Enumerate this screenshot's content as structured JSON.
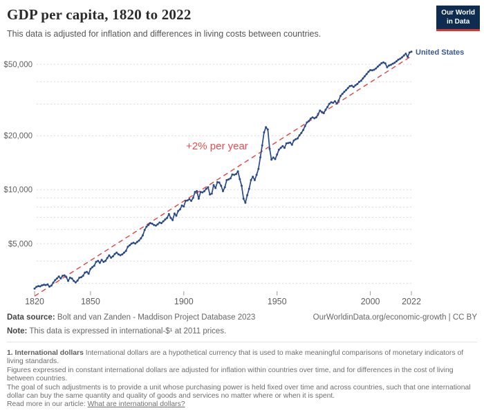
{
  "header": {
    "title": "GDP per capita, 1820 to 2022",
    "subtitle": "This data is adjusted for inflation and differences in living costs between countries.",
    "logo_line1": "Our World",
    "logo_line2": "in Data",
    "logo_bg_color": "#0d2c4f",
    "logo_accent_color": "#d8352c"
  },
  "chart_data": {
    "type": "line",
    "title": "GDP per capita, 1820 to 2022",
    "y_scale": "log",
    "grid": true,
    "colors": {
      "grid": "#dadada",
      "axis_text": "#5f5f5f",
      "tick": "#9a9a9a"
    },
    "x_axis": {
      "min": 1820,
      "max": 2022,
      "tick_values": [
        1820,
        1850,
        1900,
        1950,
        2000,
        2022
      ],
      "tick_labels": [
        "1820",
        "1850",
        "1900",
        "1950",
        "2000",
        "2022"
      ]
    },
    "y_axis": {
      "unit": "international-$ at 2011 prices",
      "range": [
        2700,
        60000
      ],
      "tick_values": [
        5000,
        10000,
        20000,
        50000
      ],
      "tick_labels": [
        "$5,000",
        "$10,000",
        "$20,000",
        "$50,000"
      ],
      "gridline_values": [
        3000,
        4000,
        5000,
        6000,
        7000,
        8000,
        9000,
        10000,
        20000,
        30000,
        40000,
        50000
      ]
    },
    "trendline": {
      "label": "+2% per year",
      "line_color": "#e8403e",
      "label_color": "#ee4a4c",
      "style": "dashed",
      "start": {
        "year": 1820,
        "value": 2550
      },
      "end": {
        "year": 2022,
        "value": 55500
      }
    },
    "series": [
      {
        "name": "United States",
        "color": "#28498b",
        "label_color": "#35599b",
        "year_start": 1820,
        "year_step": 1,
        "values": [
          2810,
          2870,
          2900,
          2890,
          2930,
          2950,
          2940,
          2960,
          2880,
          2920,
          3030,
          3130,
          3200,
          3280,
          3200,
          3310,
          3330,
          3250,
          3100,
          3230,
          3200,
          3100,
          3040,
          3110,
          3230,
          3250,
          3310,
          3450,
          3480,
          3400,
          3620,
          3700,
          3770,
          3960,
          4010,
          3910,
          4060,
          3960,
          4010,
          4160,
          4300,
          4180,
          4250,
          4380,
          4460,
          4360,
          4310,
          4360,
          4460,
          4560,
          4810,
          4900,
          5010,
          5060,
          5010,
          5110,
          5210,
          5360,
          5560,
          5960,
          6220,
          6360,
          6510,
          6460,
          6360,
          6310,
          6410,
          6560,
          6510,
          6660,
          6820,
          6960,
          7310,
          6960,
          6760,
          7360,
          7160,
          7610,
          7760,
          8160,
          8060,
          8660,
          8710,
          8860,
          8660,
          9010,
          9710,
          9810,
          8910,
          9710,
          9660,
          9810,
          10110,
          10310,
          9410,
          9510,
          10610,
          10210,
          11010,
          10960,
          10510,
          9810,
          10310,
          11310,
          11410,
          11560,
          12160,
          12110,
          12210,
          12660,
          11460,
          10510,
          8910,
          8460,
          9310,
          10110,
          11310,
          11810,
          11310,
          12110,
          13060,
          15150,
          17660,
          20860,
          22300,
          21660,
          16910,
          14710,
          15110,
          14810,
          15710,
          16710,
          17110,
          17510,
          17110,
          18110,
          18210,
          18310,
          17810,
          18810,
          19110,
          19310,
          20110,
          20710,
          21510,
          22610,
          23710,
          24110,
          24910,
          25310,
          25010,
          25310,
          26410,
          27610,
          27110,
          26710,
          27910,
          28910,
          30110,
          30710,
          30510,
          31110,
          30210,
          31410,
          33310,
          34210,
          35110,
          35910,
          36910,
          37810,
          38010,
          37410,
          38210,
          38810,
          39910,
          40510,
          41710,
          42910,
          44110,
          45410,
          46410,
          46310,
          46610,
          47410,
          48610,
          49610,
          50710,
          51210,
          50610,
          48110,
          49210,
          49710,
          50410,
          51010,
          52010,
          53110,
          53710,
          54710,
          56010,
          57310,
          55010,
          58210,
          58760
        ]
      }
    ]
  },
  "footer": {
    "data_source_label": "Data source:",
    "data_source_value": "Bolt and van Zanden - Maddison Project Database 2023",
    "attribution": "OurWorldinData.org/economic-growth | CC BY",
    "note_label": "Note:",
    "note_value": "This data is expressed in international-$¹ at 2011 prices."
  },
  "footnote": {
    "term_bold": "1. International dollars",
    "p1": "International dollars are a hypothetical currency that is used to make meaningful comparisons of monetary indicators of living standards.",
    "p2": "Figures expressed in constant international dollars are adjusted for inflation within countries over time, and for differences in the cost of living between countries.",
    "p3": "The goal of such adjustments is to provide a unit whose purchasing power is held fixed over time and across countries, such that one international dollar can buy the same quantity and quality of goods and services no matter where or when it is spent.",
    "read_more_label": "Read more in our article:",
    "read_more_link": "What are international dollars?"
  }
}
